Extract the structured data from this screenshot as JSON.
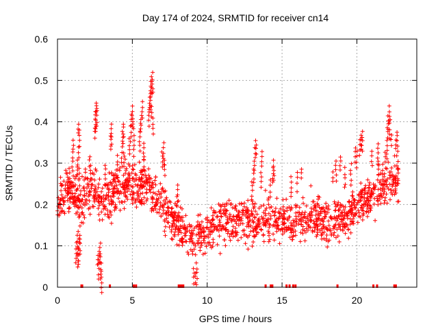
{
  "chart_data": {
    "type": "scatter",
    "title": "Day 174 of 2024, SRMTID for receiver cn14",
    "xlabel": "GPS time / hours",
    "ylabel": "SRMTID / TECUs",
    "xlim": [
      0,
      24
    ],
    "ylim": [
      0,
      0.6
    ],
    "xticks": [
      0,
      5,
      10,
      15,
      20
    ],
    "yticks": [
      0,
      0.1,
      0.2,
      0.3,
      0.4,
      0.5,
      0.6
    ],
    "xtick_labels": [
      "0",
      "5",
      "10",
      "15",
      "20"
    ],
    "ytick_labels": [
      "0",
      "0.1",
      "0.2",
      "0.3",
      "0.4",
      "0.5",
      "0.6"
    ],
    "grid": true,
    "marker": "plus",
    "color": "#ff0000",
    "trend_hours": [
      0,
      0.5,
      1,
      1.5,
      2,
      2.5,
      3,
      3.5,
      4,
      4.5,
      5,
      5.5,
      6,
      6.5,
      7,
      7.5,
      8,
      8.5,
      9,
      9.5,
      10,
      10.5,
      11,
      11.5,
      12,
      12.5,
      13,
      13.5,
      14,
      14.5,
      15,
      15.5,
      16,
      16.5,
      17,
      17.5,
      18,
      18.5,
      19,
      19.5,
      20,
      20.5,
      21,
      21.5,
      22,
      22.5,
      22.8
    ],
    "trend_values": [
      0.21,
      0.22,
      0.23,
      0.21,
      0.22,
      0.24,
      0.2,
      0.22,
      0.24,
      0.25,
      0.26,
      0.24,
      0.25,
      0.22,
      0.2,
      0.17,
      0.15,
      0.13,
      0.12,
      0.12,
      0.14,
      0.15,
      0.16,
      0.16,
      0.17,
      0.17,
      0.16,
      0.16,
      0.16,
      0.16,
      0.16,
      0.16,
      0.16,
      0.16,
      0.17,
      0.16,
      0.15,
      0.16,
      0.16,
      0.17,
      0.2,
      0.21,
      0.22,
      0.23,
      0.25,
      0.26,
      0.27
    ],
    "spread": 0.05,
    "series_end_hour": 22.8,
    "peaks": [
      {
        "x": 0.7,
        "y": 0.27
      },
      {
        "x": 0.8,
        "y": 0.29
      },
      {
        "x": 1.0,
        "y": 0.33
      },
      {
        "x": 1.05,
        "y": 0.36
      },
      {
        "x": 1.35,
        "y": 0.31
      },
      {
        "x": 1.4,
        "y": 0.34
      },
      {
        "x": 1.45,
        "y": 0.29
      },
      {
        "x": 1.4,
        "y": 0.08
      },
      {
        "x": 1.35,
        "y": 0.1
      },
      {
        "x": 1.25,
        "y": 0.11
      },
      {
        "x": 1.45,
        "y": 0.12
      },
      {
        "x": 1.5,
        "y": 0.13
      },
      {
        "x": 1.35,
        "y": 0.14
      },
      {
        "x": 1.4,
        "y": 0.4
      },
      {
        "x": 1.45,
        "y": 0.38
      },
      {
        "x": 1.8,
        "y": 0.26
      },
      {
        "x": 1.85,
        "y": 0.29
      },
      {
        "x": 2.15,
        "y": 0.32
      },
      {
        "x": 2.2,
        "y": 0.3
      },
      {
        "x": 2.5,
        "y": 0.39
      },
      {
        "x": 2.55,
        "y": 0.41
      },
      {
        "x": 2.55,
        "y": 0.43
      },
      {
        "x": 2.6,
        "y": 0.45
      },
      {
        "x": 2.62,
        "y": 0.44
      },
      {
        "x": 2.7,
        "y": 0.08
      },
      {
        "x": 2.75,
        "y": 0.07
      },
      {
        "x": 2.8,
        "y": 0.09
      },
      {
        "x": 2.85,
        "y": 0.11
      },
      {
        "x": 2.95,
        "y": 0.04
      },
      {
        "x": 2.9,
        "y": 0.06
      },
      {
        "x": 3.2,
        "y": 0.3
      },
      {
        "x": 3.6,
        "y": 0.4
      },
      {
        "x": 3.55,
        "y": 0.37
      },
      {
        "x": 4.0,
        "y": 0.32
      },
      {
        "x": 4.3,
        "y": 0.34
      },
      {
        "x": 4.35,
        "y": 0.38
      },
      {
        "x": 4.4,
        "y": 0.4
      },
      {
        "x": 4.45,
        "y": 0.33
      },
      {
        "x": 4.8,
        "y": 0.36
      },
      {
        "x": 4.9,
        "y": 0.39
      },
      {
        "x": 4.95,
        "y": 0.42
      },
      {
        "x": 5.0,
        "y": 0.44
      },
      {
        "x": 5.05,
        "y": 0.41
      },
      {
        "x": 5.1,
        "y": 0.37
      },
      {
        "x": 5.5,
        "y": 0.38
      },
      {
        "x": 5.55,
        "y": 0.4
      },
      {
        "x": 5.6,
        "y": 0.42
      },
      {
        "x": 5.65,
        "y": 0.45
      },
      {
        "x": 5.75,
        "y": 0.35
      },
      {
        "x": 5.8,
        "y": 0.32
      },
      {
        "x": 6.1,
        "y": 0.43
      },
      {
        "x": 6.15,
        "y": 0.46
      },
      {
        "x": 6.2,
        "y": 0.48
      },
      {
        "x": 6.25,
        "y": 0.5
      },
      {
        "x": 6.3,
        "y": 0.51
      },
      {
        "x": 6.35,
        "y": 0.52
      },
      {
        "x": 6.3,
        "y": 0.44
      },
      {
        "x": 6.4,
        "y": 0.41
      },
      {
        "x": 7.0,
        "y": 0.33
      },
      {
        "x": 7.1,
        "y": 0.35
      },
      {
        "x": 7.15,
        "y": 0.31
      },
      {
        "x": 8.0,
        "y": 0.22
      },
      {
        "x": 8.05,
        "y": 0.25
      },
      {
        "x": 9.1,
        "y": 0.05
      },
      {
        "x": 9.2,
        "y": 0.04
      },
      {
        "x": 9.3,
        "y": 0.06
      },
      {
        "x": 13.0,
        "y": 0.26
      },
      {
        "x": 13.1,
        "y": 0.29
      },
      {
        "x": 13.15,
        "y": 0.31
      },
      {
        "x": 13.2,
        "y": 0.34
      },
      {
        "x": 13.25,
        "y": 0.36
      },
      {
        "x": 13.6,
        "y": 0.28
      },
      {
        "x": 13.65,
        "y": 0.33
      },
      {
        "x": 14.2,
        "y": 0.26
      },
      {
        "x": 14.4,
        "y": 0.29
      },
      {
        "x": 14.45,
        "y": 0.31
      },
      {
        "x": 15.6,
        "y": 0.27
      },
      {
        "x": 16.0,
        "y": 0.28
      },
      {
        "x": 16.3,
        "y": 0.29
      },
      {
        "x": 18.4,
        "y": 0.28
      },
      {
        "x": 18.6,
        "y": 0.31
      },
      {
        "x": 18.9,
        "y": 0.32
      },
      {
        "x": 19.2,
        "y": 0.29
      },
      {
        "x": 19.6,
        "y": 0.3
      },
      {
        "x": 19.9,
        "y": 0.34
      },
      {
        "x": 20.0,
        "y": 0.33
      },
      {
        "x": 20.2,
        "y": 0.36
      },
      {
        "x": 20.3,
        "y": 0.37
      },
      {
        "x": 20.35,
        "y": 0.38
      },
      {
        "x": 21.0,
        "y": 0.33
      },
      {
        "x": 21.4,
        "y": 0.35
      },
      {
        "x": 21.45,
        "y": 0.31
      },
      {
        "x": 21.7,
        "y": 0.3
      },
      {
        "x": 21.9,
        "y": 0.33
      },
      {
        "x": 22.0,
        "y": 0.36
      },
      {
        "x": 22.05,
        "y": 0.39
      },
      {
        "x": 22.1,
        "y": 0.42
      },
      {
        "x": 22.15,
        "y": 0.44
      },
      {
        "x": 22.2,
        "y": 0.41
      },
      {
        "x": 22.3,
        "y": 0.37
      },
      {
        "x": 22.6,
        "y": 0.36
      },
      {
        "x": 22.7,
        "y": 0.38
      },
      {
        "x": 22.75,
        "y": 0.29
      }
    ],
    "zero_points": [
      1.6,
      1.65,
      3.5,
      5.1,
      5.25,
      8.1,
      8.15,
      8.2,
      8.25,
      8.35,
      8.4,
      13.9,
      14.25,
      14.35,
      15.3,
      15.5,
      15.75,
      15.9,
      18.7,
      21.1,
      21.35,
      22.5,
      22.6
    ]
  }
}
